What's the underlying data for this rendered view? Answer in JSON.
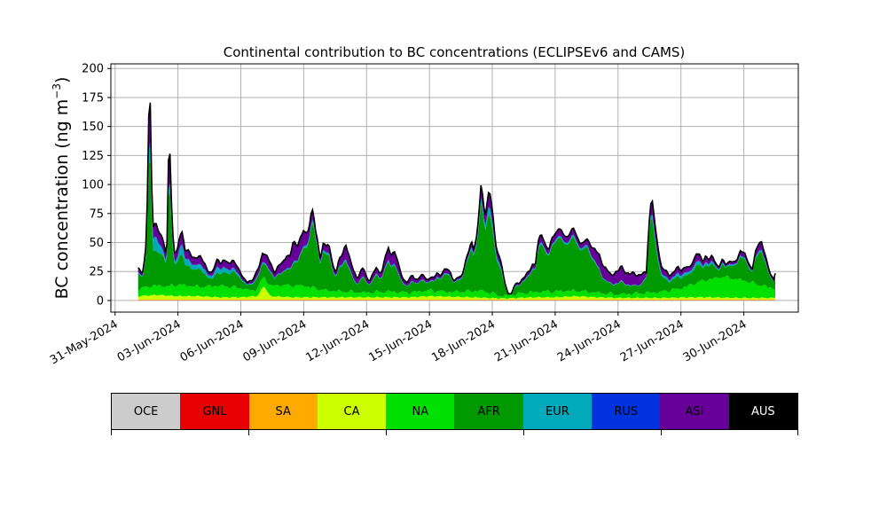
{
  "chart_data": {
    "type": "area",
    "stacked": true,
    "title": "Continental contribution to BC concentrations (ECLIPSEv6 and CAMS)",
    "ylabel_main": "BC concentration (ng m",
    "ylabel_sup": "−3",
    "ylabel_end": ")",
    "xlabel": "",
    "x_unit": "days since 31-May-2024 00:00",
    "x_range": [
      -0.2,
      32.6
    ],
    "ylim": [
      -10,
      204
    ],
    "yticks": [
      0,
      25,
      50,
      75,
      100,
      125,
      150,
      175,
      200
    ],
    "xticks": [
      {
        "x": 0,
        "label": "31-May-2024"
      },
      {
        "x": 3,
        "label": "03-Jun-2024"
      },
      {
        "x": 6,
        "label": "06-Jun-2024"
      },
      {
        "x": 9,
        "label": "09-Jun-2024"
      },
      {
        "x": 12,
        "label": "12-Jun-2024"
      },
      {
        "x": 15,
        "label": "15-Jun-2024"
      },
      {
        "x": 18,
        "label": "18-Jun-2024"
      },
      {
        "x": 21,
        "label": "21-Jun-2024"
      },
      {
        "x": 24,
        "label": "24-Jun-2024"
      },
      {
        "x": 27,
        "label": "27-Jun-2024"
      },
      {
        "x": 30,
        "label": "30-Jun-2024"
      }
    ],
    "grid": true,
    "legend_position": "below",
    "regions": [
      {
        "name": "OCE",
        "color": "#cccccc"
      },
      {
        "name": "GNL",
        "color": "#e60000"
      },
      {
        "name": "SA",
        "color": "#ffaa00"
      },
      {
        "name": "CA",
        "color": "#ccff00"
      },
      {
        "name": "NA",
        "color": "#00e000"
      },
      {
        "name": "AFR",
        "color": "#009900"
      },
      {
        "name": "EUR",
        "color": "#00aabb"
      },
      {
        "name": "RUS",
        "color": "#0033dd"
      },
      {
        "name": "ASI",
        "color": "#660099"
      },
      {
        "name": "AUS",
        "color": "#000000"
      }
    ],
    "total_keypoints": [
      [
        1.1,
        28
      ],
      [
        1.3,
        22
      ],
      [
        1.45,
        40
      ],
      [
        1.55,
        95
      ],
      [
        1.62,
        175
      ],
      [
        1.66,
        193
      ],
      [
        1.72,
        120
      ],
      [
        1.8,
        62
      ],
      [
        1.95,
        67
      ],
      [
        2.1,
        60
      ],
      [
        2.3,
        52
      ],
      [
        2.45,
        35
      ],
      [
        2.5,
        60
      ],
      [
        2.55,
        125
      ],
      [
        2.62,
        128
      ],
      [
        2.7,
        80
      ],
      [
        2.8,
        42
      ],
      [
        2.95,
        40
      ],
      [
        3.1,
        58
      ],
      [
        3.2,
        60
      ],
      [
        3.35,
        43
      ],
      [
        3.5,
        42
      ],
      [
        3.7,
        38
      ],
      [
        3.9,
        37
      ],
      [
        4.1,
        37
      ],
      [
        4.3,
        32
      ],
      [
        4.45,
        25
      ],
      [
        4.6,
        22
      ],
      [
        4.75,
        30
      ],
      [
        4.9,
        38
      ],
      [
        5.05,
        30
      ],
      [
        5.2,
        35
      ],
      [
        5.4,
        33
      ],
      [
        5.6,
        34
      ],
      [
        5.8,
        30
      ],
      [
        6.0,
        25
      ],
      [
        6.15,
        18
      ],
      [
        6.3,
        15
      ],
      [
        6.5,
        18
      ],
      [
        6.7,
        22
      ],
      [
        6.9,
        30
      ],
      [
        7.05,
        43
      ],
      [
        7.25,
        38
      ],
      [
        7.45,
        30
      ],
      [
        7.6,
        25
      ],
      [
        7.8,
        30
      ],
      [
        8.0,
        32
      ],
      [
        8.2,
        40
      ],
      [
        8.35,
        38
      ],
      [
        8.5,
        50
      ],
      [
        8.7,
        48
      ],
      [
        8.85,
        55
      ],
      [
        9.0,
        60
      ],
      [
        9.1,
        56
      ],
      [
        9.25,
        63
      ],
      [
        9.35,
        75
      ],
      [
        9.45,
        80
      ],
      [
        9.55,
        60
      ],
      [
        9.65,
        52
      ],
      [
        9.8,
        36
      ],
      [
        9.95,
        52
      ],
      [
        10.1,
        45
      ],
      [
        10.2,
        48
      ],
      [
        10.3,
        40
      ],
      [
        10.4,
        30
      ],
      [
        10.55,
        25
      ],
      [
        10.7,
        35
      ],
      [
        10.85,
        40
      ],
      [
        11.0,
        50
      ],
      [
        11.1,
        43
      ],
      [
        11.25,
        32
      ],
      [
        11.4,
        25
      ],
      [
        11.55,
        20
      ],
      [
        11.7,
        24
      ],
      [
        11.85,
        28
      ],
      [
        12.0,
        20
      ],
      [
        12.15,
        18
      ],
      [
        12.3,
        22
      ],
      [
        12.45,
        28
      ],
      [
        12.6,
        25
      ],
      [
        12.75,
        26
      ],
      [
        12.9,
        38
      ],
      [
        13.05,
        45
      ],
      [
        13.15,
        40
      ],
      [
        13.3,
        43
      ],
      [
        13.45,
        36
      ],
      [
        13.6,
        25
      ],
      [
        13.75,
        20
      ],
      [
        13.9,
        15
      ],
      [
        14.05,
        18
      ],
      [
        14.2,
        22
      ],
      [
        14.4,
        18
      ],
      [
        14.55,
        20
      ],
      [
        14.75,
        22
      ],
      [
        14.9,
        18
      ],
      [
        15.05,
        20
      ],
      [
        15.2,
        18
      ],
      [
        15.35,
        25
      ],
      [
        15.5,
        22
      ],
      [
        15.65,
        24
      ],
      [
        15.85,
        28
      ],
      [
        16.0,
        25
      ],
      [
        16.2,
        15
      ],
      [
        16.35,
        20
      ],
      [
        16.55,
        22
      ],
      [
        16.7,
        32
      ],
      [
        16.85,
        40
      ],
      [
        17.0,
        52
      ],
      [
        17.1,
        45
      ],
      [
        17.25,
        55
      ],
      [
        17.35,
        70
      ],
      [
        17.45,
        100
      ],
      [
        17.55,
        90
      ],
      [
        17.65,
        72
      ],
      [
        17.75,
        85
      ],
      [
        17.85,
        95
      ],
      [
        17.95,
        85
      ],
      [
        18.05,
        70
      ],
      [
        18.15,
        50
      ],
      [
        18.3,
        40
      ],
      [
        18.45,
        30
      ],
      [
        18.6,
        14
      ],
      [
        18.75,
        8
      ],
      [
        18.9,
        5
      ],
      [
        19.05,
        12
      ],
      [
        19.2,
        15
      ],
      [
        19.4,
        18
      ],
      [
        19.55,
        20
      ],
      [
        19.75,
        25
      ],
      [
        19.9,
        32
      ],
      [
        20.05,
        30
      ],
      [
        20.15,
        45
      ],
      [
        20.25,
        55
      ],
      [
        20.35,
        58
      ],
      [
        20.5,
        50
      ],
      [
        20.7,
        42
      ],
      [
        20.85,
        55
      ],
      [
        21.0,
        58
      ],
      [
        21.15,
        62
      ],
      [
        21.35,
        58
      ],
      [
        21.55,
        55
      ],
      [
        21.7,
        58
      ],
      [
        21.9,
        62
      ],
      [
        22.05,
        55
      ],
      [
        22.2,
        50
      ],
      [
        22.35,
        48
      ],
      [
        22.5,
        54
      ],
      [
        22.65,
        50
      ],
      [
        22.8,
        45
      ],
      [
        22.95,
        42
      ],
      [
        23.1,
        40
      ],
      [
        23.3,
        30
      ],
      [
        23.5,
        25
      ],
      [
        23.7,
        22
      ],
      [
        23.85,
        25
      ],
      [
        24.0,
        24
      ],
      [
        24.15,
        30
      ],
      [
        24.35,
        25
      ],
      [
        24.55,
        22
      ],
      [
        24.75,
        24
      ],
      [
        24.95,
        22
      ],
      [
        25.15,
        22
      ],
      [
        25.35,
        25
      ],
      [
        25.45,
        60
      ],
      [
        25.55,
        83
      ],
      [
        25.65,
        86
      ],
      [
        25.75,
        65
      ],
      [
        25.9,
        48
      ],
      [
        26.05,
        30
      ],
      [
        26.25,
        25
      ],
      [
        26.45,
        22
      ],
      [
        26.65,
        25
      ],
      [
        26.85,
        28
      ],
      [
        27.0,
        26
      ],
      [
        27.2,
        30
      ],
      [
        27.4,
        27
      ],
      [
        27.6,
        35
      ],
      [
        27.75,
        42
      ],
      [
        27.9,
        38
      ],
      [
        28.05,
        33
      ],
      [
        28.2,
        40
      ],
      [
        28.35,
        35
      ],
      [
        28.5,
        38
      ],
      [
        28.65,
        32
      ],
      [
        28.8,
        30
      ],
      [
        29.0,
        35
      ],
      [
        29.15,
        30
      ],
      [
        29.35,
        36
      ],
      [
        29.5,
        32
      ],
      [
        29.7,
        35
      ],
      [
        29.85,
        45
      ],
      [
        30.05,
        40
      ],
      [
        30.25,
        30
      ],
      [
        30.4,
        28
      ],
      [
        30.55,
        42
      ],
      [
        30.7,
        48
      ],
      [
        30.85,
        50
      ],
      [
        31.0,
        42
      ],
      [
        31.15,
        30
      ],
      [
        31.3,
        20
      ],
      [
        31.45,
        18
      ],
      [
        31.5,
        25
      ]
    ],
    "asi_keypoints": [
      [
        1.1,
        0.2
      ],
      [
        6.5,
        0.3
      ],
      [
        7.0,
        0.35
      ],
      [
        8.5,
        0.45
      ],
      [
        9.5,
        0.1
      ],
      [
        10.5,
        0.2
      ],
      [
        11.5,
        0.4
      ],
      [
        12.5,
        0.25
      ],
      [
        14.0,
        0.35
      ],
      [
        15.5,
        0.2
      ],
      [
        17.0,
        0.1
      ],
      [
        19.0,
        0.2
      ],
      [
        20.5,
        0.12
      ],
      [
        22.5,
        0.1
      ],
      [
        23.3,
        0.45
      ],
      [
        25.0,
        0.6
      ],
      [
        25.45,
        0.1
      ],
      [
        26.2,
        0.3
      ],
      [
        28.0,
        0.25
      ],
      [
        29.5,
        0.15
      ],
      [
        31.5,
        0.2
      ]
    ],
    "eur_keypoints": [
      [
        1.1,
        0.05
      ],
      [
        1.6,
        0.08
      ],
      [
        1.9,
        0.3
      ],
      [
        2.4,
        0.1
      ],
      [
        2.7,
        0.05
      ],
      [
        3.2,
        0.25
      ],
      [
        4.0,
        0.2
      ],
      [
        5.0,
        0.3
      ],
      [
        6.0,
        0.1
      ],
      [
        7.0,
        0.1
      ],
      [
        8.0,
        0.05
      ],
      [
        9.0,
        0.05
      ],
      [
        10.0,
        0.05
      ],
      [
        12.0,
        0.05
      ],
      [
        15.0,
        0.05
      ],
      [
        17.5,
        0.05
      ],
      [
        18.0,
        0.1
      ],
      [
        19.5,
        0.05
      ],
      [
        21.0,
        0.03
      ],
      [
        24.0,
        0.05
      ],
      [
        25.6,
        0.05
      ],
      [
        26.3,
        0.15
      ],
      [
        27.0,
        0.2
      ],
      [
        28.0,
        0.15
      ],
      [
        29.0,
        0.1
      ],
      [
        30.0,
        0.05
      ],
      [
        31.5,
        0.05
      ]
    ],
    "na_keypoints": [
      [
        1.1,
        6
      ],
      [
        1.7,
        8
      ],
      [
        2.0,
        8
      ],
      [
        2.6,
        8
      ],
      [
        3.0,
        10
      ],
      [
        4.0,
        8
      ],
      [
        5.0,
        10
      ],
      [
        6.0,
        8
      ],
      [
        6.5,
        5
      ],
      [
        7.0,
        8
      ],
      [
        8.0,
        10
      ],
      [
        9.0,
        10
      ],
      [
        10.0,
        6
      ],
      [
        11.0,
        5
      ],
      [
        12.0,
        4
      ],
      [
        13.0,
        5
      ],
      [
        14.0,
        4
      ],
      [
        15.0,
        5
      ],
      [
        16.0,
        4
      ],
      [
        17.5,
        6
      ],
      [
        18.5,
        2
      ],
      [
        19.5,
        4
      ],
      [
        20.5,
        5
      ],
      [
        21.5,
        5
      ],
      [
        23.0,
        4
      ],
      [
        24.0,
        3
      ],
      [
        25.0,
        4
      ],
      [
        26.0,
        5
      ],
      [
        27.0,
        8
      ],
      [
        28.0,
        14
      ],
      [
        29.0,
        18
      ],
      [
        30.0,
        15
      ],
      [
        31.0,
        10
      ],
      [
        31.5,
        8
      ]
    ],
    "ca_keypoints": [
      [
        1.1,
        3
      ],
      [
        2.0,
        4
      ],
      [
        3.0,
        3
      ],
      [
        4.0,
        3
      ],
      [
        5.0,
        2
      ],
      [
        6.0,
        2
      ],
      [
        6.8,
        3
      ],
      [
        7.1,
        12
      ],
      [
        7.4,
        3
      ],
      [
        8.5,
        2
      ],
      [
        9.5,
        2
      ],
      [
        11.0,
        2
      ],
      [
        12.5,
        2
      ],
      [
        14.0,
        2
      ],
      [
        15.0,
        3
      ],
      [
        17.0,
        2
      ],
      [
        18.5,
        1
      ],
      [
        20.0,
        2
      ],
      [
        21.0,
        2
      ],
      [
        22.0,
        3
      ],
      [
        23.0,
        2
      ],
      [
        24.0,
        1.5
      ],
      [
        26.0,
        1.5
      ],
      [
        28.0,
        2
      ],
      [
        30.0,
        1.5
      ],
      [
        31.5,
        1.5
      ]
    ],
    "sa_value": 0.5,
    "gnl_value": 0.1,
    "oce_value": 0.2,
    "rus_value": 0.3
  }
}
